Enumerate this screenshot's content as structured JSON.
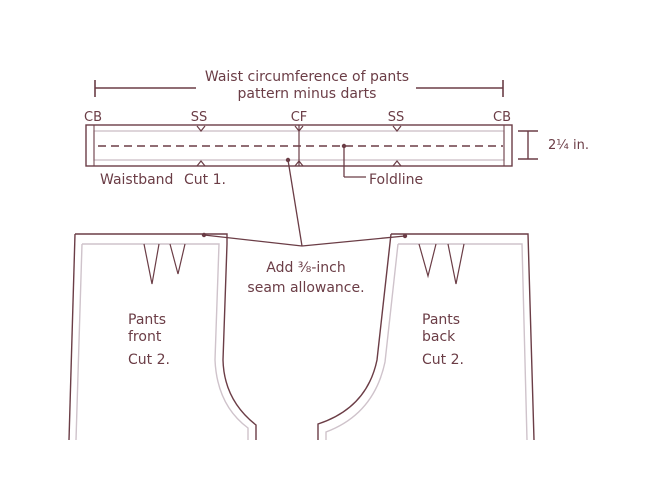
{
  "colors": {
    "ink": "#6b3d46",
    "outline": "#cfc3cb",
    "background": "#ffffff"
  },
  "labels": {
    "waist_title_line1": "Waist circumference of pants",
    "waist_title_line2": "pattern minus darts",
    "cb_left": "CB",
    "ss_left": "SS",
    "cf": "CF",
    "ss_right": "SS",
    "cb_right": "CB",
    "width_measure": "2¼ in.",
    "waistband": "Waistband",
    "waistband_cut": "Cut 1.",
    "foldline": "Foldline",
    "seam_allowance_line1": "Add ⅜-inch",
    "seam_allowance_line2": "seam allowance.",
    "front_line1": "Pants",
    "front_line2": "front",
    "front_cut": "Cut 2.",
    "back_line1": "Pants",
    "back_line2": "back",
    "back_cut": "Cut 2."
  }
}
